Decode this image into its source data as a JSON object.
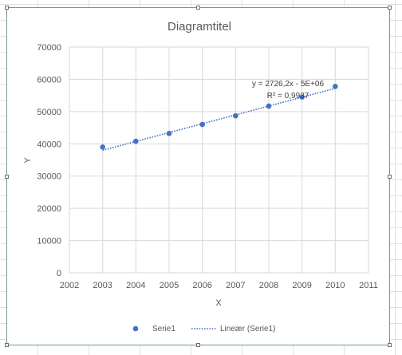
{
  "spreadsheet": {
    "gridline_color": "#e1e1e1"
  },
  "chart_data": {
    "type": "scatter",
    "title": "Diagramtitel",
    "xlabel": "X",
    "ylabel": "Y",
    "xlim": [
      2002,
      2011
    ],
    "ylim": [
      0,
      70000
    ],
    "x_ticks": [
      2002,
      2003,
      2004,
      2005,
      2006,
      2007,
      2008,
      2009,
      2010,
      2011
    ],
    "y_ticks": [
      0,
      10000,
      20000,
      30000,
      40000,
      50000,
      60000,
      70000
    ],
    "grid": true,
    "series": [
      {
        "name": "Serie1",
        "color": "#4472c4",
        "x": [
          2003,
          2004,
          2005,
          2006,
          2007,
          2008,
          2009,
          2010
        ],
        "y": [
          39000,
          40800,
          43200,
          46000,
          48700,
          51700,
          54500,
          57800
        ]
      }
    ],
    "trendline": {
      "name": "Lineær (Serie1)",
      "type": "linear",
      "style": "dotted",
      "color": "#4472c4",
      "x_range": [
        2003,
        2010
      ],
      "y_range": [
        38000,
        57200
      ],
      "equation": "y = 2726,2x - 5E+06",
      "r_squared": "R² = 0,9937"
    },
    "legend": {
      "position": "bottom",
      "entries": [
        "Serie1",
        "Lineær (Serie1)"
      ]
    }
  }
}
